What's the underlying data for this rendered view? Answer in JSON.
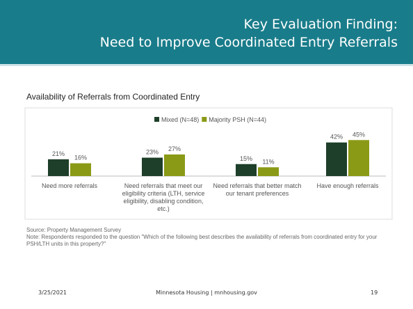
{
  "header": {
    "title_line1": "Key Evaluation Finding:",
    "title_line2": "Need to Improve Coordinated Entry Referrals"
  },
  "chart_data": {
    "type": "bar",
    "title": "Availability of Referrals from Coordinated Entry",
    "categories": [
      "Need more referrals",
      "Need referrals that meet our eligibility criteria (LTH, service eligibility, disabling condition, etc.)",
      "Need referrals that better match our tenant preferences",
      "Have enough referrals"
    ],
    "series": [
      {
        "name": "Mixed (N=48)",
        "color": "#1e3f2a",
        "values": [
          21,
          23,
          15,
          42
        ],
        "value_labels": [
          "21%",
          "23%",
          "15%",
          "42%"
        ]
      },
      {
        "name": "Majority PSH (N=44)",
        "color": "#8a9a16",
        "values": [
          16,
          27,
          11,
          45
        ],
        "value_labels": [
          "16%",
          "27%",
          "11%",
          "45%"
        ]
      }
    ],
    "legend": "top"
  },
  "source": "Source: Property Management Survey",
  "note": "Note: Respondents responded to the question \"Which of the following best describes the availability of referrals from coordinated entry for your PSH/LTH units in this property?\"",
  "footer": {
    "date": "3/25/2021",
    "center": "Minnesota Housing | mnhousing.gov",
    "page": "19"
  }
}
